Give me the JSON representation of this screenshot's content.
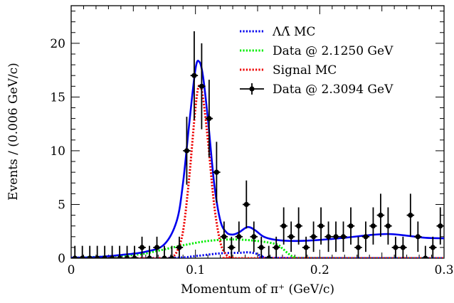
{
  "chart_data": {
    "type": "scatter",
    "xlabel": "Momentum of π⁺ (GeV/c)",
    "ylabel": "Events / (0.006 GeV/c)",
    "xlim": [
      0,
      0.3
    ],
    "ylim": [
      0,
      23.5
    ],
    "x_ticks": [
      "0",
      "0.1",
      "0.2",
      "0.3"
    ],
    "y_ticks": [
      "0",
      "5",
      "10",
      "15",
      "20"
    ],
    "grid": false,
    "legend_position": "top-right",
    "legend": [
      {
        "label": "ΛΛ̄ MC",
        "color": "#0000ee",
        "style": "dotted"
      },
      {
        "label": "Data @ 2.1250 GeV",
        "color": "#00ee00",
        "style": "dotted"
      },
      {
        "label": "Signal MC",
        "color": "#ee0000",
        "style": "dotted"
      },
      {
        "label": "Data @ 2.3094 GeV",
        "color": "#000000",
        "style": "marker-line"
      }
    ],
    "series": [
      {
        "name": "Data @ 2.3094 GeV",
        "kind": "points",
        "color": "#000000",
        "points": [
          [
            0.003,
            0
          ],
          [
            0.009,
            0
          ],
          [
            0.015,
            0
          ],
          [
            0.021,
            0
          ],
          [
            0.027,
            0
          ],
          [
            0.033,
            0
          ],
          [
            0.039,
            0
          ],
          [
            0.045,
            0
          ],
          [
            0.051,
            0
          ],
          [
            0.057,
            1
          ],
          [
            0.063,
            0
          ],
          [
            0.069,
            1
          ],
          [
            0.075,
            0
          ],
          [
            0.081,
            0
          ],
          [
            0.087,
            1
          ],
          [
            0.093,
            10
          ],
          [
            0.099,
            17
          ],
          [
            0.105,
            16
          ],
          [
            0.111,
            13
          ],
          [
            0.117,
            8
          ],
          [
            0.123,
            2
          ],
          [
            0.129,
            1
          ],
          [
            0.135,
            2
          ],
          [
            0.141,
            5
          ],
          [
            0.147,
            2
          ],
          [
            0.153,
            1
          ],
          [
            0.159,
            0
          ],
          [
            0.165,
            1
          ],
          [
            0.171,
            3
          ],
          [
            0.177,
            2
          ],
          [
            0.183,
            3
          ],
          [
            0.189,
            1
          ],
          [
            0.195,
            2
          ],
          [
            0.201,
            3
          ],
          [
            0.207,
            2
          ],
          [
            0.213,
            2
          ],
          [
            0.219,
            2
          ],
          [
            0.225,
            3
          ],
          [
            0.231,
            1
          ],
          [
            0.237,
            2
          ],
          [
            0.243,
            3
          ],
          [
            0.249,
            4
          ],
          [
            0.255,
            3
          ],
          [
            0.261,
            1
          ],
          [
            0.267,
            1
          ],
          [
            0.273,
            4
          ],
          [
            0.279,
            2
          ],
          [
            0.285,
            0
          ],
          [
            0.291,
            1
          ],
          [
            0.297,
            3
          ]
        ]
      },
      {
        "name": "ΛΛ̄ MC",
        "kind": "dotted-curve",
        "color": "#0000ee",
        "points": [
          [
            0,
            0
          ],
          [
            0.08,
            0.03
          ],
          [
            0.1,
            0.2
          ],
          [
            0.12,
            0.45
          ],
          [
            0.135,
            0.5
          ],
          [
            0.142,
            0.55
          ],
          [
            0.148,
            0.45
          ],
          [
            0.155,
            0.15
          ],
          [
            0.165,
            0.02
          ],
          [
            0.3,
            0
          ]
        ]
      },
      {
        "name": "Data @ 2.1250 GeV",
        "kind": "dotted-curve",
        "color": "#00ee00",
        "points": [
          [
            0,
            0.02
          ],
          [
            0.05,
            0.3
          ],
          [
            0.07,
            0.7
          ],
          [
            0.09,
            1.2
          ],
          [
            0.11,
            1.6
          ],
          [
            0.13,
            1.75
          ],
          [
            0.15,
            1.6
          ],
          [
            0.165,
            1.3
          ],
          [
            0.17,
            0.9
          ],
          [
            0.175,
            0.4
          ],
          [
            0.18,
            0.1
          ],
          [
            0.19,
            0.02
          ],
          [
            0.3,
            0
          ]
        ]
      },
      {
        "name": "Signal MC",
        "kind": "dotted-curve",
        "color": "#ee0000",
        "points": [
          [
            0,
            0
          ],
          [
            0.07,
            0
          ],
          [
            0.08,
            0.1
          ],
          [
            0.085,
            0.6
          ],
          [
            0.09,
            2.5
          ],
          [
            0.095,
            7.5
          ],
          [
            0.1,
            14
          ],
          [
            0.103,
            16.1
          ],
          [
            0.106,
            15
          ],
          [
            0.11,
            11
          ],
          [
            0.115,
            5
          ],
          [
            0.12,
            1.5
          ],
          [
            0.125,
            0.3
          ],
          [
            0.13,
            0.05
          ],
          [
            0.135,
            0
          ],
          [
            0.3,
            0
          ]
        ]
      },
      {
        "name": "Total fit",
        "kind": "solid-curve",
        "color": "#0000ee",
        "points": [
          [
            0,
            0.05
          ],
          [
            0.02,
            0.1
          ],
          [
            0.04,
            0.3
          ],
          [
            0.06,
            0.6
          ],
          [
            0.075,
            1.3
          ],
          [
            0.085,
            3.5
          ],
          [
            0.09,
            7
          ],
          [
            0.095,
            12.5
          ],
          [
            0.1,
            17.6
          ],
          [
            0.103,
            18.3
          ],
          [
            0.106,
            17
          ],
          [
            0.11,
            13
          ],
          [
            0.115,
            7
          ],
          [
            0.12,
            3.5
          ],
          [
            0.125,
            2.4
          ],
          [
            0.13,
            2.2
          ],
          [
            0.135,
            2.4
          ],
          [
            0.142,
            2.9
          ],
          [
            0.148,
            2.6
          ],
          [
            0.155,
            2.0
          ],
          [
            0.165,
            1.7
          ],
          [
            0.18,
            1.6
          ],
          [
            0.2,
            1.7
          ],
          [
            0.22,
            1.9
          ],
          [
            0.24,
            2.15
          ],
          [
            0.255,
            2.25
          ],
          [
            0.27,
            2.1
          ],
          [
            0.285,
            1.9
          ],
          [
            0.3,
            1.85
          ]
        ]
      }
    ]
  }
}
